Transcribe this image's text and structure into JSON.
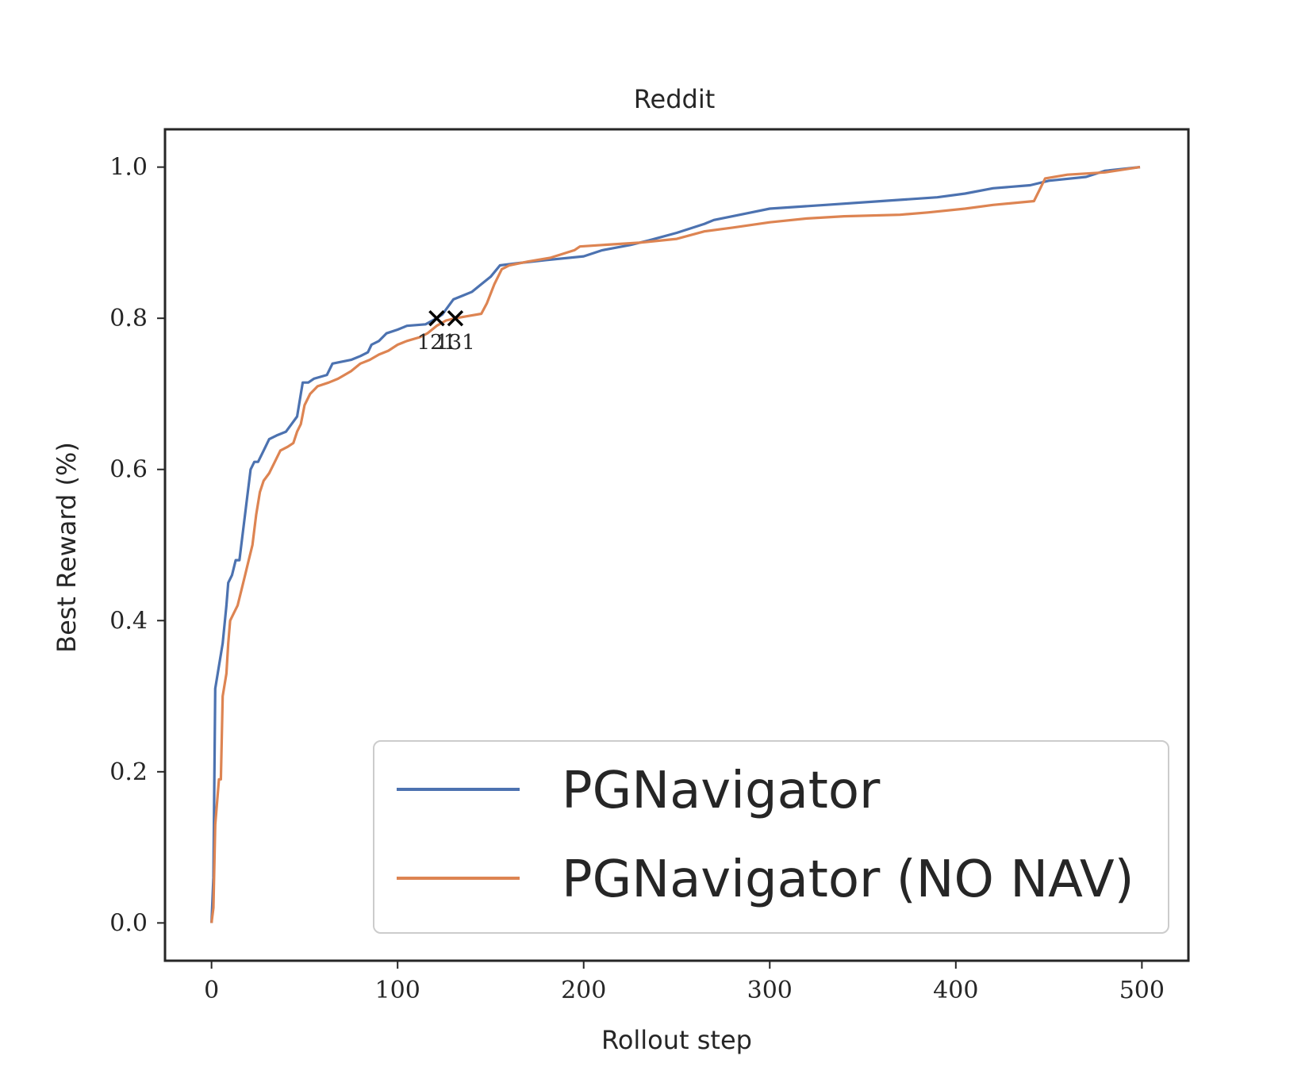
{
  "chart_data": {
    "type": "line",
    "title": "Reddit",
    "xlabel": "Rollout step",
    "ylabel": "Best Reward (%)",
    "xlim": [
      -25,
      525
    ],
    "ylim": [
      -0.05,
      1.05
    ],
    "xticks": [
      0,
      100,
      200,
      300,
      400,
      500
    ],
    "yticks": [
      0.0,
      0.2,
      0.4,
      0.6,
      0.8,
      1.0
    ],
    "grid": false,
    "legend_position": "lower-right",
    "series": [
      {
        "name": "PGNavigator",
        "color": "#4c72b0",
        "points": [
          [
            0,
            0.0
          ],
          [
            1,
            0.06
          ],
          [
            2,
            0.31
          ],
          [
            4,
            0.34
          ],
          [
            6,
            0.37
          ],
          [
            8,
            0.42
          ],
          [
            9,
            0.45
          ],
          [
            11,
            0.46
          ],
          [
            13,
            0.48
          ],
          [
            15,
            0.48
          ],
          [
            17,
            0.52
          ],
          [
            19,
            0.56
          ],
          [
            21,
            0.6
          ],
          [
            23,
            0.61
          ],
          [
            25,
            0.61
          ],
          [
            27,
            0.62
          ],
          [
            29,
            0.63
          ],
          [
            31,
            0.64
          ],
          [
            35,
            0.645
          ],
          [
            40,
            0.65
          ],
          [
            43,
            0.66
          ],
          [
            46,
            0.67
          ],
          [
            48,
            0.7
          ],
          [
            49,
            0.715
          ],
          [
            52,
            0.715
          ],
          [
            55,
            0.72
          ],
          [
            62,
            0.725
          ],
          [
            65,
            0.74
          ],
          [
            75,
            0.745
          ],
          [
            80,
            0.75
          ],
          [
            84,
            0.755
          ],
          [
            86,
            0.765
          ],
          [
            90,
            0.77
          ],
          [
            94,
            0.78
          ],
          [
            100,
            0.785
          ],
          [
            105,
            0.79
          ],
          [
            115,
            0.792
          ],
          [
            121,
            0.8
          ],
          [
            124,
            0.805
          ],
          [
            127,
            0.815
          ],
          [
            130,
            0.825
          ],
          [
            135,
            0.83
          ],
          [
            140,
            0.835
          ],
          [
            145,
            0.845
          ],
          [
            150,
            0.855
          ],
          [
            155,
            0.87
          ],
          [
            165,
            0.873
          ],
          [
            180,
            0.877
          ],
          [
            200,
            0.882
          ],
          [
            210,
            0.89
          ],
          [
            225,
            0.897
          ],
          [
            235,
            0.903
          ],
          [
            250,
            0.913
          ],
          [
            265,
            0.925
          ],
          [
            270,
            0.93
          ],
          [
            280,
            0.935
          ],
          [
            290,
            0.94
          ],
          [
            300,
            0.945
          ],
          [
            330,
            0.95
          ],
          [
            360,
            0.955
          ],
          [
            390,
            0.96
          ],
          [
            405,
            0.965
          ],
          [
            420,
            0.972
          ],
          [
            440,
            0.976
          ],
          [
            450,
            0.982
          ],
          [
            470,
            0.987
          ],
          [
            480,
            0.995
          ],
          [
            499,
            1.0
          ]
        ]
      },
      {
        "name": "PGNavigator (NO NAV)",
        "color": "#dd8452",
        "points": [
          [
            0,
            0.0
          ],
          [
            1,
            0.02
          ],
          [
            2,
            0.13
          ],
          [
            4,
            0.19
          ],
          [
            5,
            0.19
          ],
          [
            6,
            0.3
          ],
          [
            8,
            0.33
          ],
          [
            9,
            0.37
          ],
          [
            10,
            0.4
          ],
          [
            12,
            0.41
          ],
          [
            14,
            0.42
          ],
          [
            16,
            0.44
          ],
          [
            18,
            0.46
          ],
          [
            20,
            0.48
          ],
          [
            22,
            0.5
          ],
          [
            24,
            0.54
          ],
          [
            26,
            0.57
          ],
          [
            28,
            0.585
          ],
          [
            31,
            0.595
          ],
          [
            34,
            0.61
          ],
          [
            37,
            0.625
          ],
          [
            41,
            0.63
          ],
          [
            44,
            0.635
          ],
          [
            46,
            0.65
          ],
          [
            48,
            0.66
          ],
          [
            50,
            0.685
          ],
          [
            53,
            0.7
          ],
          [
            57,
            0.71
          ],
          [
            63,
            0.715
          ],
          [
            68,
            0.72
          ],
          [
            75,
            0.73
          ],
          [
            80,
            0.74
          ],
          [
            85,
            0.745
          ],
          [
            90,
            0.752
          ],
          [
            95,
            0.757
          ],
          [
            100,
            0.765
          ],
          [
            105,
            0.77
          ],
          [
            112,
            0.775
          ],
          [
            116,
            0.78
          ],
          [
            121,
            0.79
          ],
          [
            126,
            0.797
          ],
          [
            131,
            0.8
          ],
          [
            138,
            0.803
          ],
          [
            145,
            0.806
          ],
          [
            148,
            0.82
          ],
          [
            152,
            0.845
          ],
          [
            156,
            0.865
          ],
          [
            160,
            0.87
          ],
          [
            170,
            0.875
          ],
          [
            182,
            0.88
          ],
          [
            195,
            0.89
          ],
          [
            198,
            0.895
          ],
          [
            210,
            0.897
          ],
          [
            230,
            0.9
          ],
          [
            250,
            0.905
          ],
          [
            265,
            0.915
          ],
          [
            280,
            0.92
          ],
          [
            300,
            0.927
          ],
          [
            320,
            0.932
          ],
          [
            340,
            0.935
          ],
          [
            370,
            0.937
          ],
          [
            385,
            0.94
          ],
          [
            405,
            0.945
          ],
          [
            420,
            0.95
          ],
          [
            442,
            0.955
          ],
          [
            445,
            0.97
          ],
          [
            448,
            0.985
          ],
          [
            460,
            0.99
          ],
          [
            480,
            0.993
          ],
          [
            499,
            1.0
          ]
        ]
      }
    ],
    "markers": [
      {
        "x": 121,
        "y": 0.8,
        "label": "121",
        "symbol": "x"
      },
      {
        "x": 131,
        "y": 0.8,
        "label": "131",
        "symbol": "x"
      }
    ]
  }
}
